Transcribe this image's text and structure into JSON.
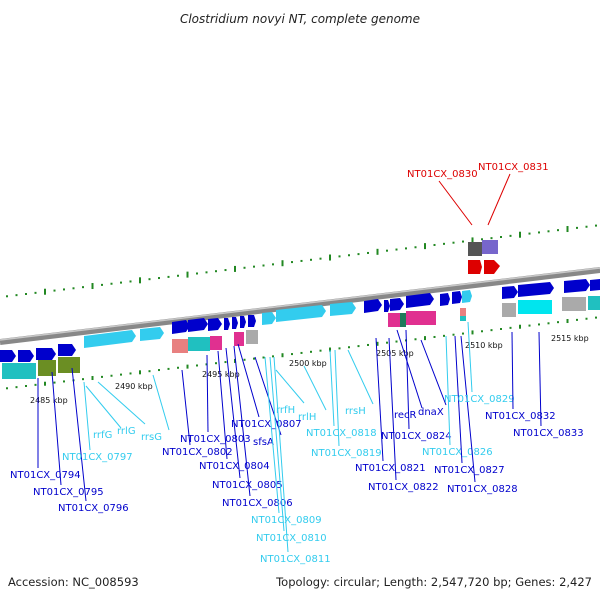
{
  "header": {
    "title": "Clostridium novyi NT, complete genome"
  },
  "footer": {
    "accession": "Accession: NC_008593",
    "stats": "Topology: circular; Length: 2,547,720 bp; Genes: 2,427"
  },
  "colors": {
    "dark_blue": "#0000cc",
    "light_blue": "#33ccee",
    "red": "#dd0000",
    "backbone": "#999999",
    "tick_green": "#228822"
  },
  "scale_labels": [
    "2485 kbp",
    "2490 kbp",
    "2495 kbp",
    "2500 kbp",
    "2505 kbp",
    "2510 kbp",
    "2515 kbp"
  ],
  "features": [
    {
      "label": "NT01CX_0794",
      "type": "locus"
    },
    {
      "label": "NT01CX_0795",
      "type": "locus"
    },
    {
      "label": "NT01CX_0796",
      "type": "locus"
    },
    {
      "label": "NT01CX_0797",
      "type": "rna"
    },
    {
      "label": "rrfG",
      "type": "rna"
    },
    {
      "label": "rrlG",
      "type": "rna"
    },
    {
      "label": "rrsG",
      "type": "rna"
    },
    {
      "label": "NT01CX_0802",
      "type": "locus"
    },
    {
      "label": "NT01CX_0803",
      "type": "locus"
    },
    {
      "label": "NT01CX_0804",
      "type": "locus"
    },
    {
      "label": "NT01CX_0805",
      "type": "locus"
    },
    {
      "label": "NT01CX_0806",
      "type": "locus"
    },
    {
      "label": "NT01CX_0807",
      "type": "locus"
    },
    {
      "label": "sfsA",
      "type": "locus"
    },
    {
      "label": "NT01CX_0809",
      "type": "rna"
    },
    {
      "label": "NT01CX_0810",
      "type": "rna"
    },
    {
      "label": "NT01CX_0811",
      "type": "rna"
    },
    {
      "label": "rrfH",
      "type": "rna"
    },
    {
      "label": "rrlH",
      "type": "rna"
    },
    {
      "label": "rrsH",
      "type": "rna"
    },
    {
      "label": "NT01CX_0818",
      "type": "rna"
    },
    {
      "label": "NT01CX_0819",
      "type": "rna"
    },
    {
      "label": "NT01CX_0821",
      "type": "locus"
    },
    {
      "label": "NT01CX_0822",
      "type": "locus"
    },
    {
      "label": "recR",
      "type": "locus"
    },
    {
      "label": "dnaX",
      "type": "locus"
    },
    {
      "label": "NT01CX_0824",
      "type": "locus"
    },
    {
      "label": "NT01CX_0826",
      "type": "rna"
    },
    {
      "label": "NT01CX_0827",
      "type": "locus"
    },
    {
      "label": "NT01CX_0828",
      "type": "locus"
    },
    {
      "label": "NT01CX_0829",
      "type": "rna"
    },
    {
      "label": "NT01CX_0832",
      "type": "locus"
    },
    {
      "label": "NT01CX_0833",
      "type": "locus"
    },
    {
      "label": "NT01CX_0830",
      "type": "highlight"
    },
    {
      "label": "NT01CX_0831",
      "type": "highlight"
    }
  ]
}
